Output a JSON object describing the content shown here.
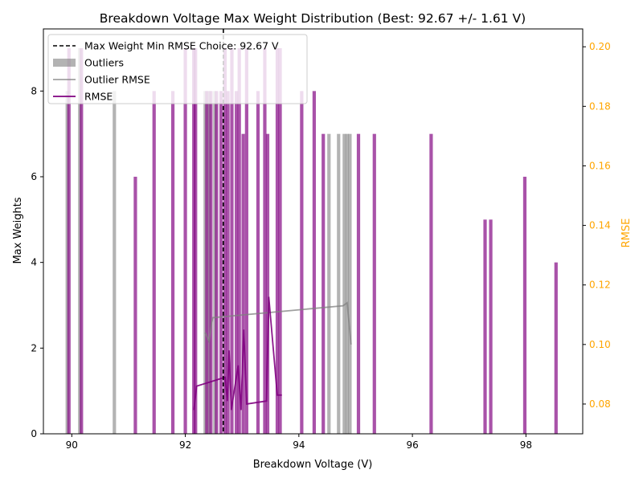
{
  "chart_data": {
    "type": "bar",
    "title": "Breakdown Voltage Max Weight Distribution (Best: 92.67 +/- 1.61 V)",
    "xlabel": "Breakdown Voltage (V)",
    "ylabel": "Max Weights",
    "y2label": "RMSE",
    "xlim": [
      89.5,
      99.0
    ],
    "ylim": [
      0,
      9.45
    ],
    "y2lim": [
      0.07,
      0.206
    ],
    "xticks": [
      90,
      92,
      94,
      96,
      98
    ],
    "yticks": [
      0,
      2,
      4,
      6,
      8
    ],
    "y2ticks": [
      0.08,
      0.1,
      0.12,
      0.14,
      0.16,
      0.18,
      0.2
    ],
    "y2tick_labels": [
      "0.08",
      "0.10",
      "0.12",
      "0.14",
      "0.16",
      "0.18",
      "0.20"
    ],
    "grid": false,
    "legend_position": "upper-left",
    "best_choice": 92.67,
    "colors": {
      "inlier": "#800080",
      "outlier": "#808080",
      "right_axis": "#ffa500",
      "best_line": "#000000"
    },
    "legend": [
      {
        "label": "Max Weight Min RMSE Choice: 92.67 V",
        "style": "dashed-line"
      },
      {
        "label": "Outliers",
        "style": "gray-patch"
      },
      {
        "label": "Outlier RMSE",
        "style": "gray-line"
      },
      {
        "label": "RMSE",
        "style": "purple-line"
      }
    ],
    "series": [
      {
        "name": "Max Weights",
        "points": [
          {
            "x": 89.95,
            "y": 9
          },
          {
            "x": 90.17,
            "y": 9
          },
          {
            "x": 91.12,
            "y": 6
          },
          {
            "x": 91.45,
            "y": 8
          },
          {
            "x": 91.78,
            "y": 8
          },
          {
            "x": 92.0,
            "y": 9
          },
          {
            "x": 92.15,
            "y": 9
          },
          {
            "x": 92.18,
            "y": 9
          },
          {
            "x": 92.38,
            "y": 8
          },
          {
            "x": 92.45,
            "y": 8
          },
          {
            "x": 92.55,
            "y": 8
          },
          {
            "x": 92.63,
            "y": 8
          },
          {
            "x": 92.7,
            "y": 9
          },
          {
            "x": 92.75,
            "y": 8
          },
          {
            "x": 92.82,
            "y": 9
          },
          {
            "x": 92.9,
            "y": 8
          },
          {
            "x": 92.95,
            "y": 9
          },
          {
            "x": 93.02,
            "y": 7
          },
          {
            "x": 93.08,
            "y": 9
          },
          {
            "x": 93.28,
            "y": 8
          },
          {
            "x": 93.4,
            "y": 9
          },
          {
            "x": 93.45,
            "y": 7
          },
          {
            "x": 93.62,
            "y": 9
          },
          {
            "x": 93.67,
            "y": 9
          },
          {
            "x": 94.05,
            "y": 8
          },
          {
            "x": 94.27,
            "y": 8
          },
          {
            "x": 94.43,
            "y": 7
          },
          {
            "x": 95.05,
            "y": 7
          },
          {
            "x": 95.33,
            "y": 7
          },
          {
            "x": 96.33,
            "y": 7
          },
          {
            "x": 97.28,
            "y": 5
          },
          {
            "x": 97.38,
            "y": 5
          },
          {
            "x": 97.98,
            "y": 6
          },
          {
            "x": 98.53,
            "y": 4
          }
        ]
      },
      {
        "name": "Outliers",
        "points": [
          {
            "x": 89.92,
            "y": 8
          },
          {
            "x": 90.14,
            "y": 9
          },
          {
            "x": 90.75,
            "y": 8
          },
          {
            "x": 92.35,
            "y": 8
          },
          {
            "x": 92.42,
            "y": 8
          },
          {
            "x": 92.52,
            "y": 8
          },
          {
            "x": 94.53,
            "y": 7
          },
          {
            "x": 94.7,
            "y": 7
          },
          {
            "x": 94.8,
            "y": 7
          },
          {
            "x": 94.85,
            "y": 7
          },
          {
            "x": 94.9,
            "y": 7
          }
        ]
      },
      {
        "name": "RMSE",
        "points": [
          {
            "x": 92.15,
            "y": 0.078
          },
          {
            "x": 92.2,
            "y": 0.086
          },
          {
            "x": 92.7,
            "y": 0.089
          },
          {
            "x": 92.74,
            "y": 0.081
          },
          {
            "x": 92.77,
            "y": 0.098
          },
          {
            "x": 92.81,
            "y": 0.078
          },
          {
            "x": 92.93,
            "y": 0.093
          },
          {
            "x": 92.98,
            "y": 0.078
          },
          {
            "x": 93.03,
            "y": 0.105
          },
          {
            "x": 93.08,
            "y": 0.08
          },
          {
            "x": 93.43,
            "y": 0.081
          },
          {
            "x": 93.47,
            "y": 0.116
          },
          {
            "x": 93.62,
            "y": 0.083
          },
          {
            "x": 93.7,
            "y": 0.083
          }
        ]
      },
      {
        "name": "Outlier RMSE",
        "points": [
          {
            "x": 92.35,
            "y": 0.104
          },
          {
            "x": 92.42,
            "y": 0.101
          },
          {
            "x": 92.48,
            "y": 0.109
          },
          {
            "x": 94.78,
            "y": 0.113
          },
          {
            "x": 94.85,
            "y": 0.114
          },
          {
            "x": 94.92,
            "y": 0.1
          }
        ]
      }
    ]
  }
}
